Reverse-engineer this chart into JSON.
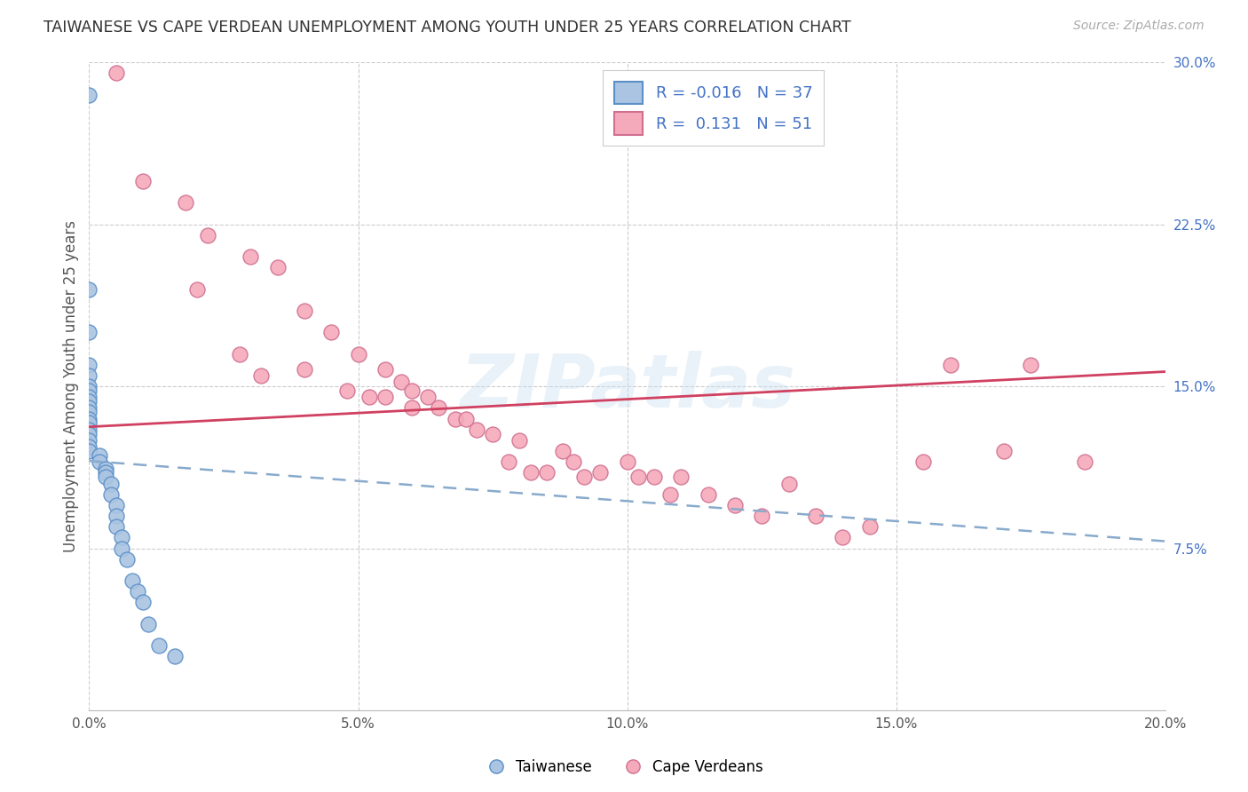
{
  "title": "TAIWANESE VS CAPE VERDEAN UNEMPLOYMENT AMONG YOUTH UNDER 25 YEARS CORRELATION CHART",
  "source": "Source: ZipAtlas.com",
  "ylabel": "Unemployment Among Youth under 25 years",
  "xlim": [
    0.0,
    0.2
  ],
  "ylim": [
    0.0,
    0.3
  ],
  "xticks": [
    0.0,
    0.05,
    0.1,
    0.15,
    0.2
  ],
  "xtick_labels": [
    "0.0%",
    "5.0%",
    "10.0%",
    "15.0%",
    "20.0%"
  ],
  "ytick_vals": [
    0.0,
    0.075,
    0.15,
    0.225,
    0.3
  ],
  "ytick_labels": [
    "",
    "7.5%",
    "15.0%",
    "22.5%",
    "30.0%"
  ],
  "tw_R": -0.016,
  "tw_N": 37,
  "cv_R": 0.131,
  "cv_N": 51,
  "tw_color_fill": "#aac4e2",
  "tw_color_edge": "#5b8fc8",
  "cv_color_fill": "#f5aabb",
  "cv_color_edge": "#d07090",
  "tw_trend_color": "#88aacc",
  "cv_trend_color": "#d04060",
  "grid_color": "#cccccc",
  "bg_color": "#ffffff",
  "watermark": "ZIPatlas",
  "tw_x": [
    0.0,
    0.0,
    0.0,
    0.0,
    0.0,
    0.0,
    0.0,
    0.0,
    0.0,
    0.0,
    0.0,
    0.0,
    0.0,
    0.0,
    0.0,
    0.0,
    0.0,
    0.0,
    0.002,
    0.002,
    0.003,
    0.003,
    0.003,
    0.004,
    0.004,
    0.005,
    0.005,
    0.005,
    0.006,
    0.006,
    0.007,
    0.008,
    0.009,
    0.01,
    0.011,
    0.013,
    0.016
  ],
  "tw_y": [
    0.285,
    0.195,
    0.175,
    0.16,
    0.155,
    0.15,
    0.148,
    0.145,
    0.143,
    0.14,
    0.138,
    0.135,
    0.133,
    0.13,
    0.128,
    0.125,
    0.122,
    0.12,
    0.118,
    0.115,
    0.112,
    0.11,
    0.108,
    0.105,
    0.1,
    0.095,
    0.09,
    0.085,
    0.08,
    0.075,
    0.07,
    0.06,
    0.055,
    0.05,
    0.04,
    0.03,
    0.025
  ],
  "cv_x": [
    0.005,
    0.01,
    0.018,
    0.02,
    0.022,
    0.028,
    0.03,
    0.032,
    0.035,
    0.04,
    0.04,
    0.045,
    0.048,
    0.05,
    0.052,
    0.055,
    0.055,
    0.058,
    0.06,
    0.06,
    0.063,
    0.065,
    0.068,
    0.07,
    0.072,
    0.075,
    0.078,
    0.08,
    0.082,
    0.085,
    0.088,
    0.09,
    0.092,
    0.095,
    0.1,
    0.102,
    0.105,
    0.108,
    0.11,
    0.115,
    0.12,
    0.125,
    0.13,
    0.135,
    0.14,
    0.145,
    0.155,
    0.16,
    0.17,
    0.175,
    0.185
  ],
  "cv_y": [
    0.295,
    0.245,
    0.235,
    0.195,
    0.22,
    0.165,
    0.21,
    0.155,
    0.205,
    0.185,
    0.158,
    0.175,
    0.148,
    0.165,
    0.145,
    0.158,
    0.145,
    0.152,
    0.148,
    0.14,
    0.145,
    0.14,
    0.135,
    0.135,
    0.13,
    0.128,
    0.115,
    0.125,
    0.11,
    0.11,
    0.12,
    0.115,
    0.108,
    0.11,
    0.115,
    0.108,
    0.108,
    0.1,
    0.108,
    0.1,
    0.095,
    0.09,
    0.105,
    0.09,
    0.08,
    0.085,
    0.115,
    0.16,
    0.12,
    0.16,
    0.115
  ]
}
